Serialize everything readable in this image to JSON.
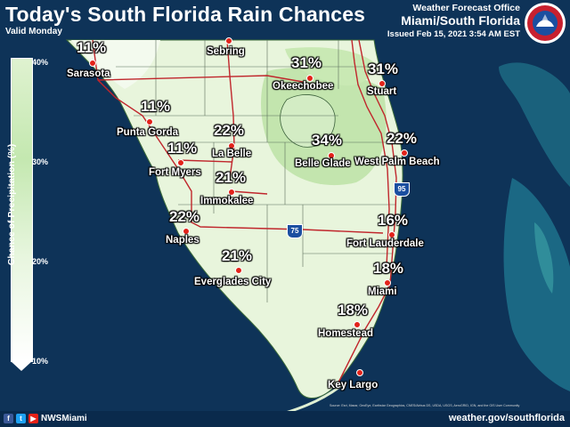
{
  "header": {
    "title": "Today's South Florida Rain Chances",
    "valid": "Valid Monday",
    "office_name": "Weather Forecast Office",
    "office_area": "Miami/South Florida",
    "issued": "Issued Feb 15, 2021 3:54 AM EST"
  },
  "legend": {
    "title": "Chance of Precipitation (%)",
    "ticks": [
      "40%",
      "30%",
      "20%",
      "10%"
    ]
  },
  "highways": {
    "i95": "95",
    "i75": "75"
  },
  "locations": [
    {
      "city": "Sarasota",
      "pct": "11%"
    },
    {
      "city": "Sebring",
      "pct": ""
    },
    {
      "city": "Okeechobee",
      "pct": "31%"
    },
    {
      "city": "Stuart",
      "pct": "31%"
    },
    {
      "city": "Punta Gorda",
      "pct": "11%"
    },
    {
      "city": "La Belle",
      "pct": "22%"
    },
    {
      "city": "Belle Glade",
      "pct": "34%"
    },
    {
      "city": "West Palm Beach",
      "pct": "22%"
    },
    {
      "city": "Fort Myers",
      "pct": "11%"
    },
    {
      "city": "Immokalee",
      "pct": "21%"
    },
    {
      "city": "Naples",
      "pct": "22%"
    },
    {
      "city": "Fort Lauderdale",
      "pct": "16%"
    },
    {
      "city": "Everglades City",
      "pct": "21%"
    },
    {
      "city": "Miami",
      "pct": "18%"
    },
    {
      "city": "Homestead",
      "pct": "18%"
    },
    {
      "city": "Key Largo",
      "pct": ""
    }
  ],
  "credits": "Source: Esri, Maxar, GeoEye, Earthstar Geographics, CNES/Airbus DS, USDA, USGS, AeroGRID, IGN, and the GIS User Community",
  "footer": {
    "handle": "NWSMiami",
    "website": "weather.gov/southflorida",
    "icons": [
      "facebook-icon",
      "twitter-icon",
      "youtube-icon"
    ]
  },
  "colors": {
    "ocean": "#0e3358",
    "land_low": "#ecf6e2",
    "land_high": "#b5dea0",
    "roads": "#c0262c",
    "dot": "#e2231a",
    "footer": "#0a2a4c"
  }
}
